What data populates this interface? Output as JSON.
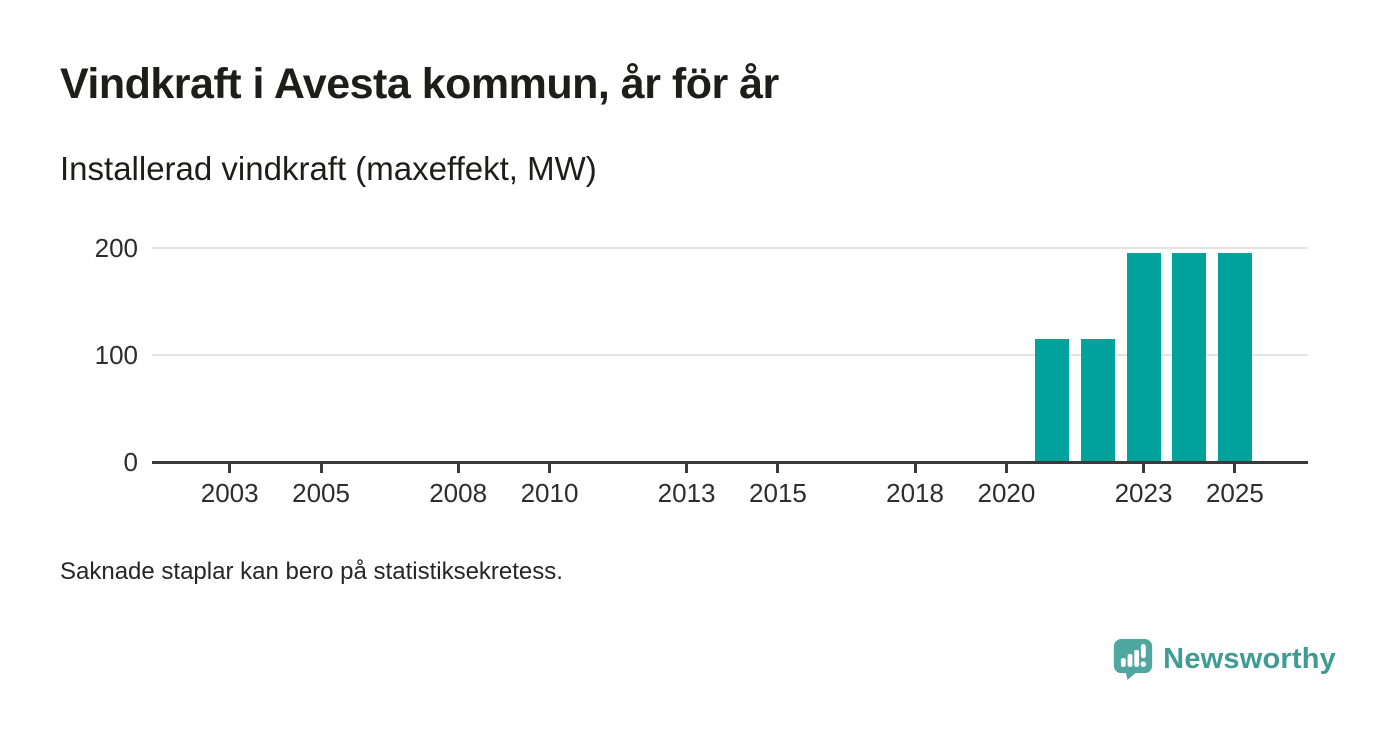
{
  "header": {
    "title": "Vindkraft i Avesta kommun, år för år",
    "subtitle": "Installerad vindkraft (maxeffekt, MW)"
  },
  "chart_data": {
    "type": "bar",
    "title": "Vindkraft i Avesta kommun, år för år",
    "subtitle": "Installerad vindkraft (maxeffekt, MW)",
    "unit": "MW",
    "x": [
      2021,
      2022,
      2023,
      2024,
      2025
    ],
    "values": [
      115,
      115,
      195,
      195,
      195
    ],
    "xticks": [
      2003,
      2005,
      2008,
      2010,
      2013,
      2015,
      2018,
      2020,
      2023,
      2025
    ],
    "yticks": [
      0,
      100,
      200
    ],
    "ylim": [
      0,
      200
    ],
    "xlim": [
      2001.3,
      2026.6
    ],
    "grid": "horizontal-light",
    "legend": "none",
    "bar_color": "#00A29B",
    "axis_color": "#3a3a3a",
    "gridline_color": "#e3e3e3"
  },
  "footnote": "Saknade staplar kan bero på statistiksekretess.",
  "brand": {
    "name": "Newsworthy",
    "logo_icon": "speech-bubble-bar-chart-icon",
    "text_color": "#3E9C94",
    "mark_color": "#4FA79F"
  }
}
